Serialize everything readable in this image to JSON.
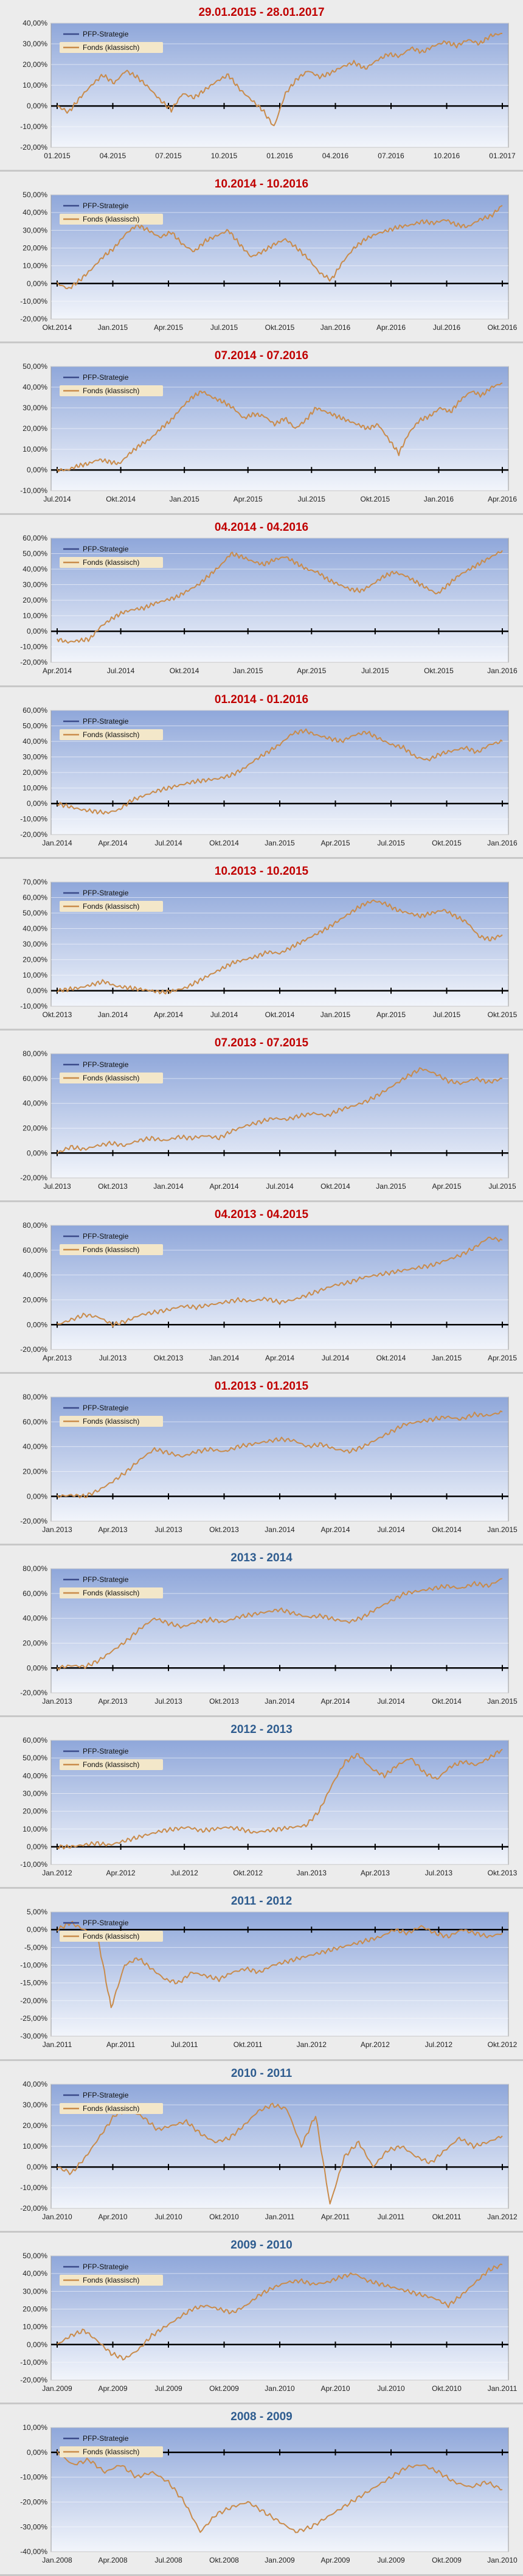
{
  "colors": {
    "panel_bg": "#ececec",
    "plot_top": "#8fa7da",
    "plot_bottom": "#f2f5fb",
    "line": "#c98b4a",
    "legend_line_strategy": "#3a4a8a",
    "title_red": "#c00000",
    "title_blue": "#2e5c8f"
  },
  "chart_data": [
    {
      "type": "line",
      "title": "29.01.2015 - 28.01.2017",
      "title_color": "#c00000",
      "y_ticks": [
        "40,00%",
        "30,00%",
        "20,00%",
        "10,00%",
        "0,00%",
        "-10,00%",
        "-20,00%"
      ],
      "ylim": [
        -20,
        40
      ],
      "x_ticks": [
        "01.2015",
        "04.2015",
        "07.2015",
        "10.2015",
        "01.2016",
        "04.2016",
        "07.2016",
        "10.2016",
        "01.2017"
      ],
      "legend": [
        "PFP-Strategie",
        "Fonds (klassisch)"
      ],
      "series": [
        {
          "name": "Fonds (klassisch)",
          "values": [
            0,
            -3,
            4,
            10,
            15,
            11,
            17,
            14,
            9,
            3,
            -2,
            6,
            4,
            8,
            12,
            15,
            8,
            3,
            -2,
            -10,
            6,
            13,
            17,
            14,
            16,
            19,
            21,
            18,
            22,
            25,
            24,
            28,
            26,
            29,
            31,
            29,
            32,
            30,
            34,
            35
          ]
        }
      ]
    },
    {
      "type": "line",
      "title": "10.2014 - 10.2016",
      "title_color": "#c00000",
      "y_ticks": [
        "50,00%",
        "40,00%",
        "30,00%",
        "20,00%",
        "10,00%",
        "0,00%",
        "-10,00%",
        "-20,00%"
      ],
      "ylim": [
        -20,
        50
      ],
      "x_ticks": [
        "Okt.2014",
        "Jan.2015",
        "Apr.2015",
        "Jul.2015",
        "Okt.2015",
        "Jan.2016",
        "Apr.2016",
        "Jul.2016",
        "Okt.2016"
      ],
      "legend": [
        "PFP-Strategie",
        "Fonds (klassisch)"
      ],
      "series": [
        {
          "name": "Fonds (klassisch)",
          "values": [
            0,
            -3,
            2,
            8,
            15,
            20,
            28,
            33,
            30,
            26,
            29,
            22,
            18,
            24,
            27,
            30,
            22,
            15,
            18,
            22,
            25,
            20,
            14,
            6,
            2,
            12,
            20,
            25,
            28,
            30,
            32,
            33,
            35,
            34,
            36,
            33,
            32,
            36,
            38,
            44
          ]
        }
      ]
    },
    {
      "type": "line",
      "title": "07.2014 - 07.2016",
      "title_color": "#c00000",
      "y_ticks": [
        "50,00%",
        "40,00%",
        "30,00%",
        "20,00%",
        "10,00%",
        "0,00%",
        "-10,00%"
      ],
      "ylim": [
        -10,
        50
      ],
      "x_ticks": [
        "Jul.2014",
        "Okt.2014",
        "Jan.2015",
        "Apr.2015",
        "Jul.2015",
        "Okt.2015",
        "Jan.2016",
        "Apr.2016"
      ],
      "legend": [
        "PFP-Strategie",
        "Fonds (klassisch)"
      ],
      "series": [
        {
          "name": "Fonds (klassisch)",
          "values": [
            0,
            0,
            2,
            3,
            5,
            4,
            3,
            8,
            12,
            15,
            20,
            24,
            30,
            35,
            38,
            35,
            33,
            30,
            25,
            27,
            26,
            22,
            25,
            20,
            24,
            30,
            28,
            26,
            24,
            22,
            20,
            22,
            15,
            8,
            18,
            24,
            26,
            30,
            28,
            34,
            38,
            36,
            40,
            42
          ]
        }
      ]
    },
    {
      "type": "line",
      "title": "04.2014 - 04.2016",
      "title_color": "#c00000",
      "y_ticks": [
        "60,00%",
        "50,00%",
        "40,00%",
        "30,00%",
        "20,00%",
        "10,00%",
        "0,00%",
        "-10,00%",
        "-20,00%"
      ],
      "ylim": [
        -20,
        60
      ],
      "x_ticks": [
        "Apr.2014",
        "Jul.2014",
        "Okt.2014",
        "Jan.2015",
        "Apr.2015",
        "Jul.2015",
        "Okt.2015",
        "Jan.2016"
      ],
      "legend": [
        "PFP-Strategie",
        "Fonds (klassisch)"
      ],
      "series": [
        {
          "name": "Fonds (klassisch)",
          "values": [
            -5,
            -7,
            -6,
            -5,
            3,
            8,
            12,
            14,
            15,
            18,
            20,
            22,
            26,
            30,
            36,
            42,
            50,
            48,
            45,
            43,
            46,
            48,
            44,
            40,
            38,
            33,
            30,
            27,
            26,
            30,
            35,
            38,
            36,
            32,
            28,
            24,
            30,
            36,
            40,
            44,
            48,
            52
          ]
        }
      ]
    },
    {
      "type": "line",
      "title": "01.2014 - 01.2016",
      "title_color": "#c00000",
      "y_ticks": [
        "60,00%",
        "50,00%",
        "40,00%",
        "30,00%",
        "20,00%",
        "10,00%",
        "0,00%",
        "-10,00%",
        "-20,00%"
      ],
      "ylim": [
        -20,
        60
      ],
      "x_ticks": [
        "Jan.2014",
        "Apr.2014",
        "Jul.2014",
        "Okt.2014",
        "Jan.2015",
        "Apr.2015",
        "Jul.2015",
        "Okt.2015",
        "Jan.2016"
      ],
      "legend": [
        "PFP-Strategie",
        "Fonds (klassisch)"
      ],
      "series": [
        {
          "name": "Fonds (klassisch)",
          "values": [
            0,
            -2,
            -4,
            -5,
            -6,
            -4,
            2,
            5,
            8,
            10,
            12,
            14,
            15,
            16,
            18,
            22,
            28,
            33,
            38,
            45,
            47,
            44,
            42,
            40,
            44,
            46,
            42,
            38,
            36,
            30,
            28,
            32,
            34,
            36,
            33,
            38,
            40
          ]
        }
      ]
    },
    {
      "type": "line",
      "title": "10.2013 - 10.2015",
      "title_color": "#c00000",
      "y_ticks": [
        "70,00%",
        "60,00%",
        "50,00%",
        "40,00%",
        "30,00%",
        "20,00%",
        "10,00%",
        "0,00%",
        "-10,00%"
      ],
      "ylim": [
        -10,
        70
      ],
      "x_ticks": [
        "Okt.2013",
        "Jan.2014",
        "Apr.2014",
        "Jul.2014",
        "Okt.2014",
        "Jan.2015",
        "Apr.2015",
        "Jul.2015",
        "Okt.2015"
      ],
      "legend": [
        "PFP-Strategie",
        "Fonds (klassisch)"
      ],
      "series": [
        {
          "name": "Fonds (klassisch)",
          "values": [
            0,
            1,
            2,
            4,
            6,
            3,
            2,
            1,
            0,
            -1,
            0,
            2,
            6,
            10,
            14,
            18,
            20,
            22,
            25,
            24,
            28,
            32,
            36,
            40,
            45,
            50,
            55,
            58,
            56,
            52,
            50,
            48,
            50,
            52,
            48,
            44,
            35,
            33,
            36
          ]
        }
      ]
    },
    {
      "type": "line",
      "title": "07.2013 - 07.2015",
      "title_color": "#c00000",
      "y_ticks": [
        "80,00%",
        "60,00%",
        "40,00%",
        "20,00%",
        "0,00%",
        "-20,00%"
      ],
      "ylim": [
        -20,
        80
      ],
      "x_ticks": [
        "Jul.2013",
        "Okt.2013",
        "Jan.2014",
        "Apr.2014",
        "Jul.2014",
        "Okt.2014",
        "Jan.2015",
        "Apr.2015",
        "Jul.2015"
      ],
      "legend": [
        "PFP-Strategie",
        "Fonds (klassisch)"
      ],
      "series": [
        {
          "name": "Fonds (klassisch)",
          "values": [
            0,
            5,
            3,
            6,
            8,
            6,
            10,
            12,
            10,
            13,
            12,
            14,
            12,
            18,
            22,
            25,
            28,
            27,
            30,
            32,
            30,
            35,
            38,
            42,
            48,
            55,
            62,
            68,
            64,
            58,
            56,
            60,
            57,
            60
          ]
        }
      ]
    },
    {
      "type": "line",
      "title": "04.2013 - 04.2015",
      "title_color": "#c00000",
      "y_ticks": [
        "80,00%",
        "60,00%",
        "40,00%",
        "20,00%",
        "0,00%",
        "-20,00%"
      ],
      "ylim": [
        -20,
        80
      ],
      "x_ticks": [
        "Apr.2013",
        "Jul.2013",
        "Okt.2013",
        "Jan.2014",
        "Apr.2014",
        "Jul.2014",
        "Okt.2014",
        "Jan.2015",
        "Apr.2015"
      ],
      "legend": [
        "PFP-Strategie",
        "Fonds (klassisch)"
      ],
      "series": [
        {
          "name": "Fonds (klassisch)",
          "values": [
            0,
            4,
            8,
            6,
            0,
            3,
            8,
            10,
            12,
            15,
            14,
            16,
            18,
            20,
            19,
            21,
            18,
            20,
            24,
            28,
            32,
            34,
            38,
            40,
            42,
            44,
            46,
            48,
            52,
            56,
            62,
            70,
            68
          ]
        }
      ]
    },
    {
      "type": "line",
      "title": "01.2013 - 01.2015",
      "title_color": "#c00000",
      "y_ticks": [
        "80,00%",
        "60,00%",
        "40,00%",
        "20,00%",
        "0,00%",
        "-20,00%"
      ],
      "ylim": [
        -20,
        80
      ],
      "x_ticks": [
        "Jan.2013",
        "Apr.2013",
        "Jul.2013",
        "Okt.2013",
        "Jan.2014",
        "Apr.2014",
        "Jul.2014",
        "Okt.2014",
        "Jan.2015"
      ],
      "legend": [
        "PFP-Strategie",
        "Fonds (klassisch)"
      ],
      "series": [
        {
          "name": "Fonds (klassisch)",
          "values": [
            0,
            1,
            0,
            5,
            12,
            20,
            30,
            38,
            35,
            32,
            36,
            38,
            36,
            40,
            42,
            44,
            46,
            45,
            40,
            42,
            38,
            36,
            40,
            46,
            52,
            58,
            60,
            62,
            64,
            62,
            66,
            65,
            68
          ]
        }
      ]
    },
    {
      "type": "line",
      "title": "2013 - 2014",
      "title_color": "#2e5c8f",
      "y_ticks": [
        "80,00%",
        "60,00%",
        "40,00%",
        "20,00%",
        "0,00%",
        "-20,00%"
      ],
      "ylim": [
        -20,
        80
      ],
      "x_ticks": [
        "Jan.2013",
        "Apr.2013",
        "Jul.2013",
        "Okt.2013",
        "Jan.2014",
        "Apr.2014",
        "Jul.2014",
        "Okt.2014",
        "Jan.2015"
      ],
      "legend": [
        "PFP-Strategie",
        "Fonds (klassisch)"
      ],
      "series": [
        {
          "name": "Fonds (klassisch)",
          "values": [
            0,
            2,
            1,
            6,
            14,
            22,
            32,
            40,
            36,
            33,
            37,
            39,
            37,
            41,
            43,
            45,
            47,
            44,
            41,
            42,
            39,
            37,
            41,
            48,
            54,
            60,
            62,
            64,
            66,
            64,
            68,
            66,
            72
          ]
        }
      ]
    },
    {
      "type": "line",
      "title": "2012 - 2013",
      "title_color": "#2e5c8f",
      "y_ticks": [
        "60,00%",
        "50,00%",
        "40,00%",
        "30,00%",
        "20,00%",
        "10,00%",
        "0,00%",
        "-10,00%"
      ],
      "ylim": [
        -10,
        60
      ],
      "x_ticks": [
        "Jan.2012",
        "Apr.2012",
        "Jul.2012",
        "Okt.2012",
        "Jan.2013",
        "Apr.2013",
        "Jul.2013",
        "Okt.2013"
      ],
      "legend": [
        "PFP-Strategie",
        "Fonds (klassisch)"
      ],
      "series": [
        {
          "name": "Fonds (klassisch)",
          "values": [
            0,
            0,
            1,
            2,
            1,
            3,
            5,
            7,
            9,
            10,
            11,
            9,
            10,
            11,
            10,
            8,
            9,
            10,
            11,
            12,
            20,
            35,
            48,
            52,
            44,
            40,
            46,
            50,
            42,
            38,
            45,
            48,
            46,
            50,
            55
          ]
        }
      ]
    },
    {
      "type": "line",
      "title": "2011 - 2012",
      "title_color": "#2e5c8f",
      "y_ticks": [
        "5,00%",
        "0,00%",
        "-5,00%",
        "-10,00%",
        "-15,00%",
        "-20,00%",
        "-25,00%",
        "-30,00%"
      ],
      "ylim": [
        -30,
        5
      ],
      "x_ticks": [
        "Jan.2011",
        "Apr.2011",
        "Jul.2011",
        "Okt.2011",
        "Jan.2012",
        "Apr.2012",
        "Jul.2012",
        "Okt.2012"
      ],
      "legend": [
        "PFP-Strategie",
        "Fonds (klassisch)"
      ],
      "series": [
        {
          "name": "Fonds (klassisch)",
          "values": [
            0,
            2,
            0,
            -2,
            -22,
            -10,
            -8,
            -11,
            -14,
            -15,
            -12,
            -13,
            -14,
            -12,
            -11,
            -12,
            -10,
            -9,
            -8,
            -7,
            -6,
            -5,
            -4,
            -3,
            -2,
            0,
            -1,
            1,
            -1,
            -2,
            0,
            -1,
            -2,
            -1
          ]
        }
      ]
    },
    {
      "type": "line",
      "title": "2010 - 2011",
      "title_color": "#2e5c8f",
      "y_ticks": [
        "40,00%",
        "30,00%",
        "20,00%",
        "10,00%",
        "0,00%",
        "-10,00%",
        "-20,00%"
      ],
      "ylim": [
        -20,
        40
      ],
      "x_ticks": [
        "Jan.2010",
        "Apr.2010",
        "Jul.2010",
        "Okt.2010",
        "Jan.2011",
        "Apr.2011",
        "Jul.2011",
        "Okt.2011",
        "Jan.2012"
      ],
      "legend": [
        "PFP-Strategie",
        "Fonds (klassisch)"
      ],
      "series": [
        {
          "name": "Fonds (klassisch)",
          "values": [
            0,
            -3,
            5,
            15,
            25,
            28,
            24,
            18,
            20,
            22,
            16,
            12,
            14,
            20,
            27,
            30,
            28,
            10,
            25,
            -18,
            5,
            12,
            0,
            8,
            10,
            5,
            2,
            8,
            14,
            10,
            12,
            15
          ]
        }
      ]
    },
    {
      "type": "line",
      "title": "2009 - 2010",
      "title_color": "#2e5c8f",
      "y_ticks": [
        "50,00%",
        "40,00%",
        "30,00%",
        "20,00%",
        "10,00%",
        "0,00%",
        "-10,00%",
        "-20,00%"
      ],
      "ylim": [
        -20,
        50
      ],
      "x_ticks": [
        "Jan.2009",
        "Apr.2009",
        "Jul.2009",
        "Okt.2009",
        "Jan.2010",
        "Apr.2010",
        "Jul.2010",
        "Okt.2010",
        "Jan.2011"
      ],
      "legend": [
        "PFP-Strategie",
        "Fonds (klassisch)"
      ],
      "series": [
        {
          "name": "Fonds (klassisch)",
          "values": [
            0,
            5,
            8,
            2,
            -5,
            -8,
            -3,
            5,
            10,
            15,
            20,
            22,
            20,
            18,
            22,
            28,
            32,
            35,
            36,
            34,
            35,
            38,
            40,
            36,
            34,
            32,
            30,
            28,
            26,
            22,
            28,
            35,
            42,
            45
          ]
        }
      ]
    },
    {
      "type": "line",
      "title": "2008 - 2009",
      "title_color": "#2e5c8f",
      "y_ticks": [
        "10,00%",
        "0,00%",
        "-10,00%",
        "-20,00%",
        "-30,00%",
        "-40,00%"
      ],
      "ylim": [
        -40,
        10
      ],
      "x_ticks": [
        "Jan.2008",
        "Apr.2008",
        "Jul.2008",
        "Okt.2008",
        "Jan.2009",
        "Apr.2009",
        "Jul.2009",
        "Okt.2009",
        "Jan.2010"
      ],
      "legend": [
        "PFP-Strategie",
        "Fonds (klassisch)"
      ],
      "series": [
        {
          "name": "Fonds (klassisch)",
          "values": [
            0,
            -5,
            -3,
            -8,
            -5,
            -10,
            -8,
            -12,
            -20,
            -32,
            -25,
            -22,
            -20,
            -24,
            -28,
            -32,
            -30,
            -26,
            -22,
            -18,
            -14,
            -10,
            -6,
            -5,
            -8,
            -12,
            -14,
            -12,
            -15
          ]
        }
      ]
    }
  ]
}
